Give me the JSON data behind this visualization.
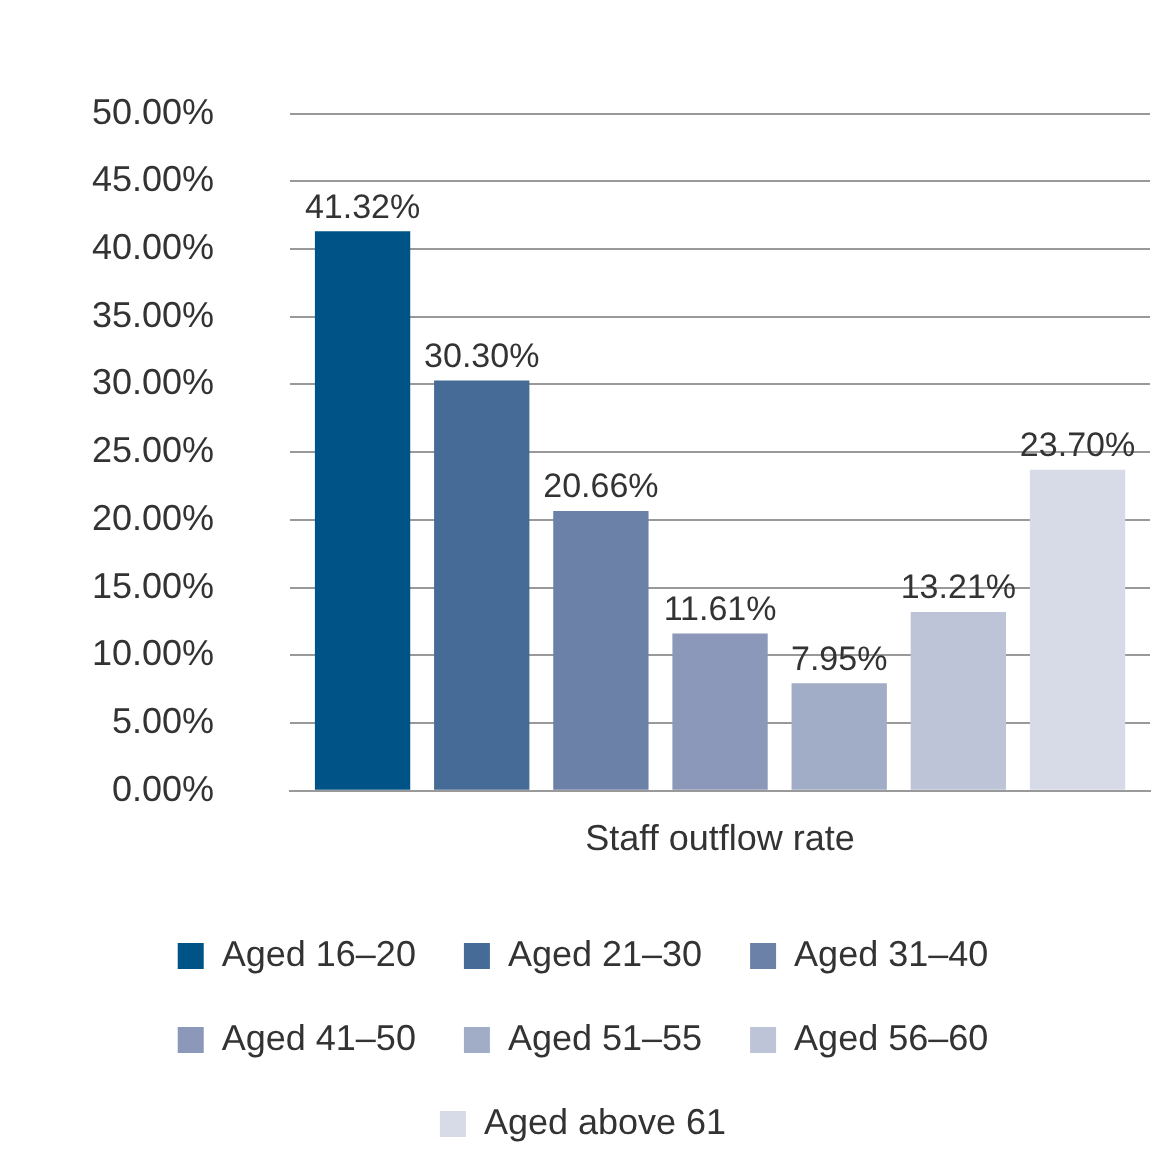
{
  "chart_data": {
    "type": "bar",
    "categories": [
      "Staff outflow rate"
    ],
    "series": [
      {
        "name": "Aged 16–20",
        "color": "#005386",
        "values": [
          41.32
        ],
        "value_labels": [
          "41.32%"
        ]
      },
      {
        "name": "Aged 21–30",
        "color": "#466b96",
        "values": [
          30.3
        ],
        "value_labels": [
          "30.30%"
        ]
      },
      {
        "name": "Aged 31–40",
        "color": "#6c81a7",
        "values": [
          20.66
        ],
        "value_labels": [
          "20.66%"
        ]
      },
      {
        "name": "Aged 41–50",
        "color": "#8b98b9",
        "values": [
          11.61
        ],
        "value_labels": [
          "11.61%"
        ]
      },
      {
        "name": "Aged 51–55",
        "color": "#a1acc7",
        "values": [
          7.95
        ],
        "value_labels": [
          "7.95%"
        ]
      },
      {
        "name": "Aged 56–60",
        "color": "#bdc4d7",
        "values": [
          13.21
        ],
        "value_labels": [
          "13.21%"
        ]
      },
      {
        "name": "Aged above 61",
        "color": "#d7dae7",
        "values": [
          23.7
        ],
        "value_labels": [
          "23.70%"
        ]
      }
    ],
    "ylim": [
      0,
      50
    ],
    "yticks": [
      {
        "value": 0,
        "label": "0.00%"
      },
      {
        "value": 5,
        "label": "5.00%"
      },
      {
        "value": 10,
        "label": "10.00%"
      },
      {
        "value": 15,
        "label": "15.00%"
      },
      {
        "value": 20,
        "label": "20.00%"
      },
      {
        "value": 25,
        "label": "25.00%"
      },
      {
        "value": 30,
        "label": "30.00%"
      },
      {
        "value": 35,
        "label": "35.00%"
      },
      {
        "value": 40,
        "label": "40.00%"
      },
      {
        "value": 45,
        "label": "45.00%"
      },
      {
        "value": 50,
        "label": "50.00%"
      }
    ],
    "grid": "y",
    "legend": "bottom"
  }
}
